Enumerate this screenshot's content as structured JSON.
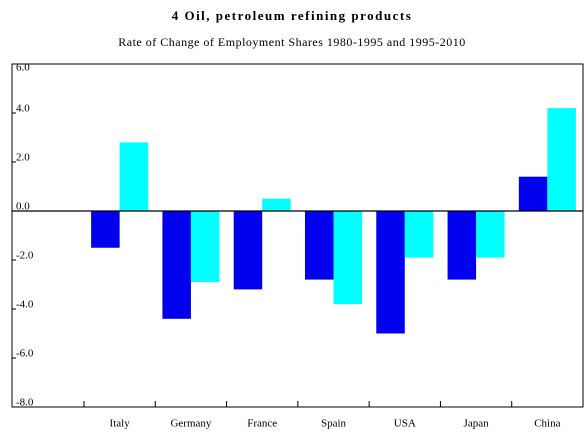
{
  "chart_data": {
    "type": "bar",
    "title": "4 Oil, petroleum refining products",
    "subtitle": "Rate of Change of Employment Shares 1980-1995 and 1995-2010",
    "categories": [
      "Italy",
      "Germany",
      "France",
      "Spain",
      "USA",
      "Japan",
      "China"
    ],
    "series": [
      {
        "color": "#0000ee",
        "values": [
          -1.5,
          -4.4,
          -3.2,
          -2.8,
          -5.0,
          -2.8,
          1.4
        ]
      },
      {
        "color": "#00ffff",
        "values": [
          2.8,
          -2.9,
          0.5,
          -3.8,
          -1.9,
          -1.9,
          4.2
        ]
      }
    ],
    "ylim": [
      -8,
      6
    ],
    "yticks": [
      {
        "value": 6,
        "label": "6.0"
      },
      {
        "value": 4,
        "label": "4.0"
      },
      {
        "value": 2,
        "label": "2.0"
      },
      {
        "value": 0,
        "label": "0.0"
      },
      {
        "value": -2,
        "label": "-2.0"
      },
      {
        "value": -4,
        "label": "-4.0"
      },
      {
        "value": -6,
        "label": "-6.0"
      },
      {
        "value": -8,
        "label": "-8.0"
      }
    ],
    "grid": false
  }
}
